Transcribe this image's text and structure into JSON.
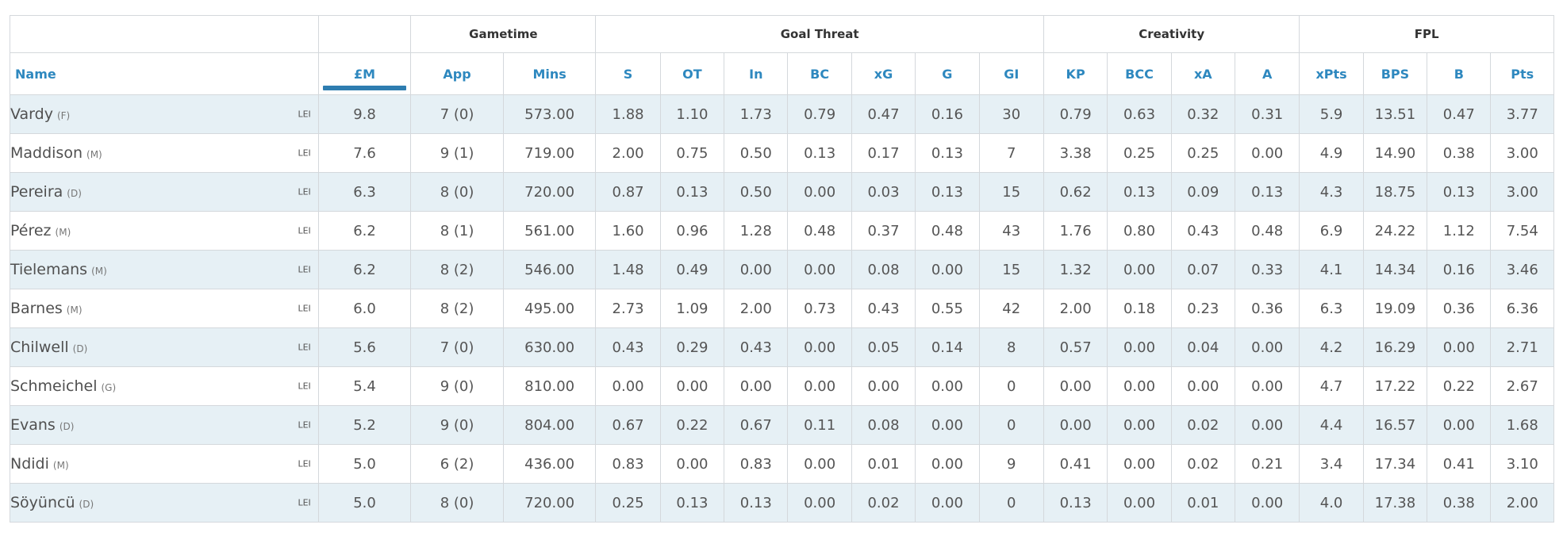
{
  "groups": {
    "gametime": "Gametime",
    "goal_threat": "Goal Threat",
    "creativity": "Creativity",
    "fpl": "FPL"
  },
  "columns": [
    "Name",
    "£M",
    "App",
    "Mins",
    "S",
    "OT",
    "In",
    "BC",
    "xG",
    "G",
    "GI",
    "KP",
    "BCC",
    "xA",
    "A",
    "xPts",
    "BPS",
    "B",
    "Pts"
  ],
  "sorted_column": "£M",
  "rows": [
    {
      "name": "Vardy",
      "pos": "(F)",
      "team": "LEI",
      "values": [
        "9.8",
        "7 (0)",
        "573.00",
        "1.88",
        "1.10",
        "1.73",
        "0.79",
        "0.47",
        "0.16",
        "30",
        "0.79",
        "0.63",
        "0.32",
        "0.31",
        "5.9",
        "13.51",
        "0.47",
        "3.77"
      ]
    },
    {
      "name": "Maddison",
      "pos": "(M)",
      "team": "LEI",
      "values": [
        "7.6",
        "9 (1)",
        "719.00",
        "2.00",
        "0.75",
        "0.50",
        "0.13",
        "0.17",
        "0.13",
        "7",
        "3.38",
        "0.25",
        "0.25",
        "0.00",
        "4.9",
        "14.90",
        "0.38",
        "3.00"
      ]
    },
    {
      "name": "Pereira",
      "pos": "(D)",
      "team": "LEI",
      "values": [
        "6.3",
        "8 (0)",
        "720.00",
        "0.87",
        "0.13",
        "0.50",
        "0.00",
        "0.03",
        "0.13",
        "15",
        "0.62",
        "0.13",
        "0.09",
        "0.13",
        "4.3",
        "18.75",
        "0.13",
        "3.00"
      ]
    },
    {
      "name": "Pérez",
      "pos": "(M)",
      "team": "LEI",
      "values": [
        "6.2",
        "8 (1)",
        "561.00",
        "1.60",
        "0.96",
        "1.28",
        "0.48",
        "0.37",
        "0.48",
        "43",
        "1.76",
        "0.80",
        "0.43",
        "0.48",
        "6.9",
        "24.22",
        "1.12",
        "7.54"
      ]
    },
    {
      "name": "Tielemans",
      "pos": "(M)",
      "team": "LEI",
      "values": [
        "6.2",
        "8 (2)",
        "546.00",
        "1.48",
        "0.49",
        "0.00",
        "0.00",
        "0.08",
        "0.00",
        "15",
        "1.32",
        "0.00",
        "0.07",
        "0.33",
        "4.1",
        "14.34",
        "0.16",
        "3.46"
      ]
    },
    {
      "name": "Barnes",
      "pos": "(M)",
      "team": "LEI",
      "values": [
        "6.0",
        "8 (2)",
        "495.00",
        "2.73",
        "1.09",
        "2.00",
        "0.73",
        "0.43",
        "0.55",
        "42",
        "2.00",
        "0.18",
        "0.23",
        "0.36",
        "6.3",
        "19.09",
        "0.36",
        "6.36"
      ]
    },
    {
      "name": "Chilwell",
      "pos": "(D)",
      "team": "LEI",
      "values": [
        "5.6",
        "7 (0)",
        "630.00",
        "0.43",
        "0.29",
        "0.43",
        "0.00",
        "0.05",
        "0.14",
        "8",
        "0.57",
        "0.00",
        "0.04",
        "0.00",
        "4.2",
        "16.29",
        "0.00",
        "2.71"
      ]
    },
    {
      "name": "Schmeichel",
      "pos": "(G)",
      "team": "LEI",
      "values": [
        "5.4",
        "9 (0)",
        "810.00",
        "0.00",
        "0.00",
        "0.00",
        "0.00",
        "0.00",
        "0.00",
        "0",
        "0.00",
        "0.00",
        "0.00",
        "0.00",
        "4.7",
        "17.22",
        "0.22",
        "2.67"
      ]
    },
    {
      "name": "Evans",
      "pos": "(D)",
      "team": "LEI",
      "values": [
        "5.2",
        "9 (0)",
        "804.00",
        "0.67",
        "0.22",
        "0.67",
        "0.11",
        "0.08",
        "0.00",
        "0",
        "0.00",
        "0.00",
        "0.02",
        "0.00",
        "4.4",
        "16.57",
        "0.00",
        "1.68"
      ]
    },
    {
      "name": "Ndidi",
      "pos": "(M)",
      "team": "LEI",
      "values": [
        "5.0",
        "6 (2)",
        "436.00",
        "0.83",
        "0.00",
        "0.83",
        "0.00",
        "0.01",
        "0.00",
        "9",
        "0.41",
        "0.00",
        "0.02",
        "0.21",
        "3.4",
        "17.34",
        "0.41",
        "3.10"
      ]
    },
    {
      "name": "Söyüncü",
      "pos": "(D)",
      "team": "LEI",
      "values": [
        "5.0",
        "8 (0)",
        "720.00",
        "0.25",
        "0.13",
        "0.13",
        "0.00",
        "0.02",
        "0.00",
        "0",
        "0.13",
        "0.00",
        "0.01",
        "0.00",
        "4.0",
        "17.38",
        "0.38",
        "2.00"
      ]
    }
  ]
}
